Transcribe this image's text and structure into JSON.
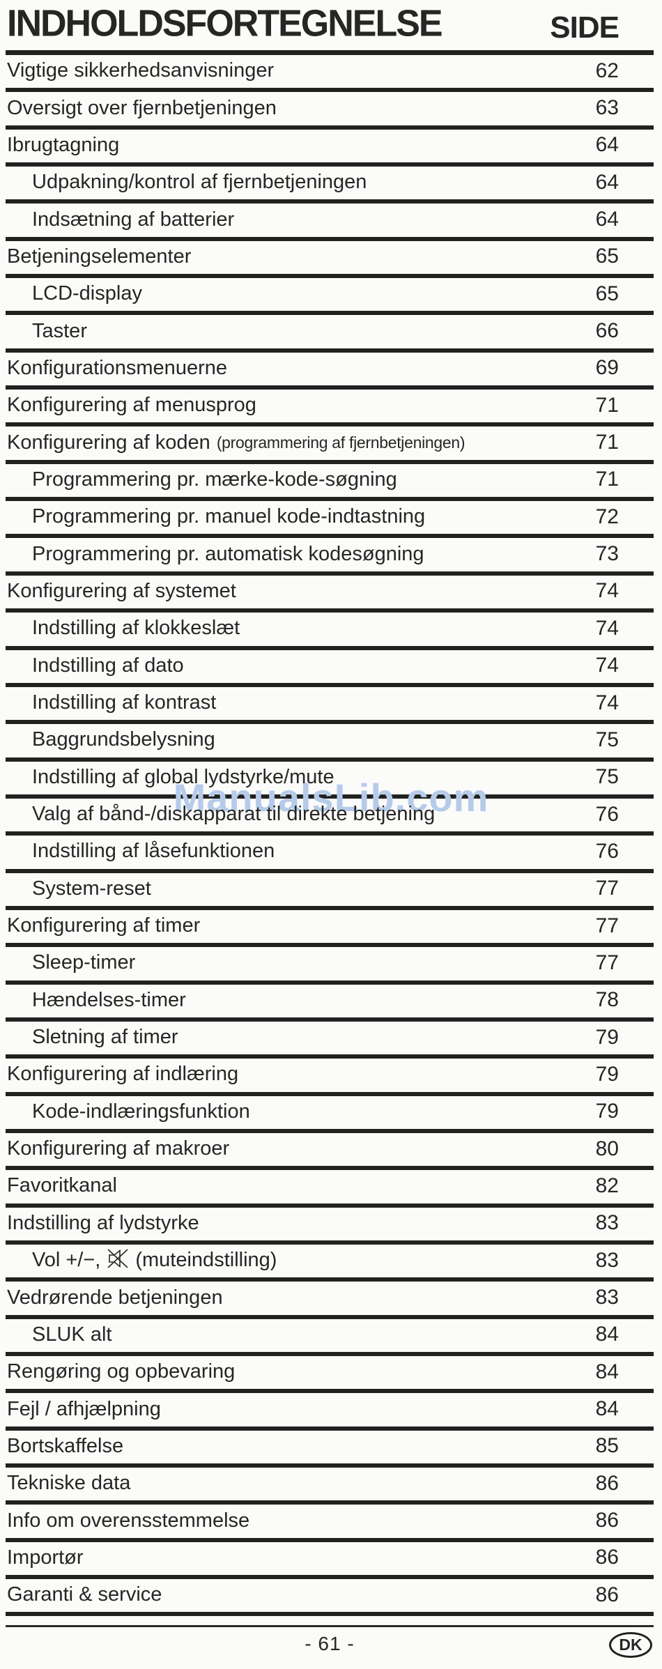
{
  "page": {
    "title": "INDHOLDSFORTEGNELSE",
    "side_label": "SIDE",
    "watermark": "ManualsLib.com",
    "footer_page": "- 61 -",
    "country_badge": "DK"
  },
  "colors": {
    "text": "#262624",
    "rule": "#21211f",
    "watermark": "#b6cbe9",
    "background": "#fbfbfa"
  },
  "toc": {
    "rows": [
      {
        "label": "Vigtige sikkerhedsanvisninger",
        "page": "62",
        "level": 1
      },
      {
        "label": "Oversigt over fjernbetjeningen",
        "page": "63",
        "level": 1
      },
      {
        "label": "Ibrugtagning",
        "page": "64",
        "level": 1
      },
      {
        "label": "Udpakning/kontrol af fjernbetjeningen",
        "page": "64",
        "level": 2
      },
      {
        "label": "Indsætning af batterier",
        "page": "64",
        "level": 2
      },
      {
        "label": "Betjeningselementer",
        "page": "65",
        "level": 1
      },
      {
        "label": "LCD-display",
        "page": "65",
        "level": 2
      },
      {
        "label": "Taster",
        "page": "66",
        "level": 2
      },
      {
        "label": "Konfigurationsmenuerne",
        "page": "69",
        "level": 1
      },
      {
        "label": "Konfigurering af menusprog",
        "page": "71",
        "level": 1
      },
      {
        "label": "Konfigurering af koden",
        "small": "(programmering af fjernbetjeningen)",
        "page": "71",
        "level": 1
      },
      {
        "label": "Programmering pr. mærke-kode-søgning",
        "page": "71",
        "level": 2
      },
      {
        "label": "Programmering pr. manuel kode-indtastning",
        "page": "72",
        "level": 2
      },
      {
        "label": "Programmering pr. automatisk kodesøgning",
        "page": "73",
        "level": 2
      },
      {
        "label": "Konfigurering af systemet",
        "page": "74",
        "level": 1
      },
      {
        "label": "Indstilling af klokkeslæt",
        "page": "74",
        "level": 2
      },
      {
        "label": "Indstilling af dato",
        "page": "74",
        "level": 2
      },
      {
        "label": "Indstilling af kontrast",
        "page": "74",
        "level": 2
      },
      {
        "label": "Baggrundsbelysning",
        "page": "75",
        "level": 2
      },
      {
        "label": "Indstilling af global lydstyrke/mute",
        "page": "75",
        "level": 2
      },
      {
        "label": "Valg af bånd-/diskapparat til direkte betjening",
        "page": "76",
        "level": 2
      },
      {
        "label": "Indstilling af låsefunktionen",
        "page": "76",
        "level": 2
      },
      {
        "label": "System-reset",
        "page": "77",
        "level": 2
      },
      {
        "label": "Konfigurering af timer",
        "page": "77",
        "level": 1
      },
      {
        "label": "Sleep-timer",
        "page": "77",
        "level": 2
      },
      {
        "label": "Hændelses-timer",
        "page": "78",
        "level": 2
      },
      {
        "label": "Sletning af timer",
        "page": "79",
        "level": 2
      },
      {
        "label": "Konfigurering af indlæring",
        "page": "79",
        "level": 1
      },
      {
        "label": "Kode-indlæringsfunktion",
        "page": "79",
        "level": 2
      },
      {
        "label": "Konfigurering af makroer",
        "page": "80",
        "level": 1
      },
      {
        "label": "Favoritkanal",
        "page": "82",
        "level": 1
      },
      {
        "label": "Indstilling af lydstyrke",
        "page": "83",
        "level": 1
      },
      {
        "label": "Vol +/−,",
        "icon": "mute-speaker",
        "label2": "(muteindstilling)",
        "page": "83",
        "level": 2
      },
      {
        "label": "Vedrørende betjeningen",
        "page": "83",
        "level": 1
      },
      {
        "label": "SLUK alt",
        "page": "84",
        "level": 2
      },
      {
        "label": "Rengøring og opbevaring",
        "page": "84",
        "level": 1
      },
      {
        "label": "Fejl / afhjælpning",
        "page": "84",
        "level": 1
      },
      {
        "label": "Bortskaffelse",
        "page": "85",
        "level": 1
      },
      {
        "label": "Tekniske data",
        "page": "86",
        "level": 1
      },
      {
        "label": "Info om overensstemmelse",
        "page": "86",
        "level": 1
      },
      {
        "label": "Importør",
        "page": "86",
        "level": 1
      },
      {
        "label": "Garanti & service",
        "page": "86",
        "level": 1
      }
    ]
  }
}
